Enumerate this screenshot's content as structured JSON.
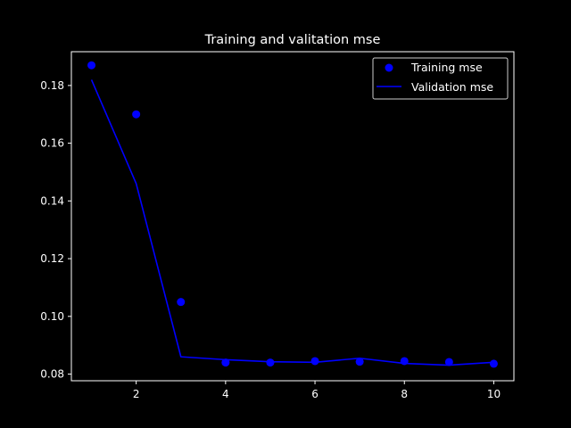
{
  "chart_data": {
    "type": "line",
    "title": "Training and valitation mse",
    "xlabel": "",
    "ylabel": "",
    "xlim": [
      0.55,
      10.45
    ],
    "ylim": [
      0.0777,
      0.1917
    ],
    "x_ticks": [
      2,
      4,
      6,
      8,
      10
    ],
    "y_ticks": [
      0.08,
      0.1,
      0.12,
      0.14,
      0.16,
      0.18
    ],
    "y_tick_labels": [
      "0.08",
      "0.10",
      "0.12",
      "0.14",
      "0.16",
      "0.18"
    ],
    "grid": false,
    "legend_position": "top-right",
    "colors": {
      "background": "#000000",
      "axes": "#ffffff",
      "series": "#0000ff"
    },
    "series": [
      {
        "name": "Training mse",
        "style": "markers",
        "x": [
          1,
          2,
          3,
          4,
          5,
          6,
          7,
          8,
          9,
          10
        ],
        "values": [
          0.187,
          0.17,
          0.105,
          0.084,
          0.084,
          0.0845,
          0.0843,
          0.0845,
          0.0842,
          0.0836
        ]
      },
      {
        "name": "Validation mse",
        "style": "line",
        "x": [
          1,
          2,
          3,
          4,
          5,
          6,
          7,
          8,
          9,
          10
        ],
        "values": [
          0.182,
          0.146,
          0.086,
          0.085,
          0.0843,
          0.0841,
          0.0855,
          0.0837,
          0.0831,
          0.0841
        ]
      }
    ]
  }
}
